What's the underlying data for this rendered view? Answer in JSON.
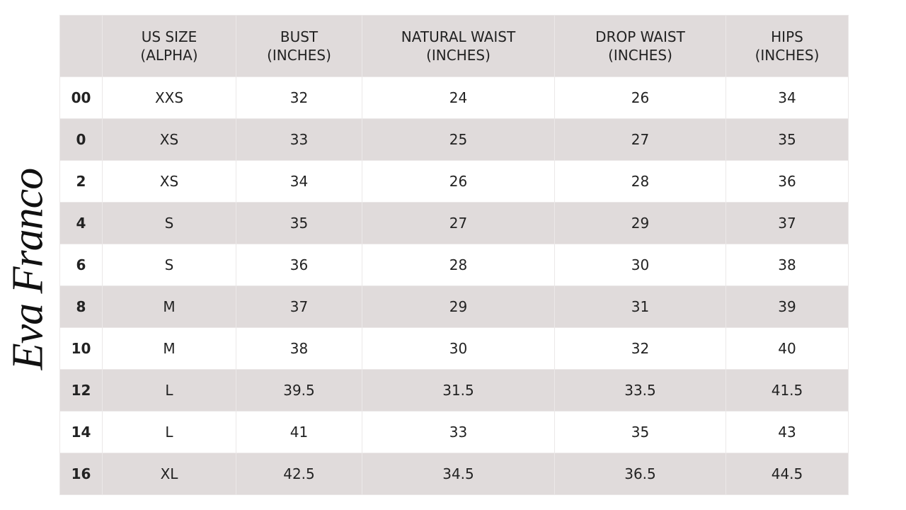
{
  "logo": "Eva Franco",
  "table": {
    "header": [
      [],
      [
        "US SIZE",
        "(ALPHA)"
      ],
      [
        "BUST",
        "(INCHES)"
      ],
      [
        "NATURAL WAIST",
        "(INCHES)"
      ],
      [
        "DROP WAIST",
        "(INCHES)"
      ],
      [
        "HIPS",
        "(INCHES)"
      ]
    ],
    "rows": [
      [
        "00",
        "XXS",
        "32",
        "24",
        "26",
        "34"
      ],
      [
        "0",
        "XS",
        "33",
        "25",
        "27",
        "35"
      ],
      [
        "2",
        "XS",
        "34",
        "26",
        "28",
        "36"
      ],
      [
        "4",
        "S",
        "35",
        "27",
        "29",
        "37"
      ],
      [
        "6",
        "S",
        "36",
        "28",
        "30",
        "38"
      ],
      [
        "8",
        "M",
        "37",
        "29",
        "31",
        "39"
      ],
      [
        "10",
        "M",
        "38",
        "30",
        "32",
        "40"
      ],
      [
        "12",
        "L",
        "39.5",
        "31.5",
        "33.5",
        "41.5"
      ],
      [
        "14",
        "L",
        "41",
        "33",
        "35",
        "43"
      ],
      [
        "16",
        "XL",
        "42.5",
        "34.5",
        "36.5",
        "44.5"
      ]
    ]
  }
}
